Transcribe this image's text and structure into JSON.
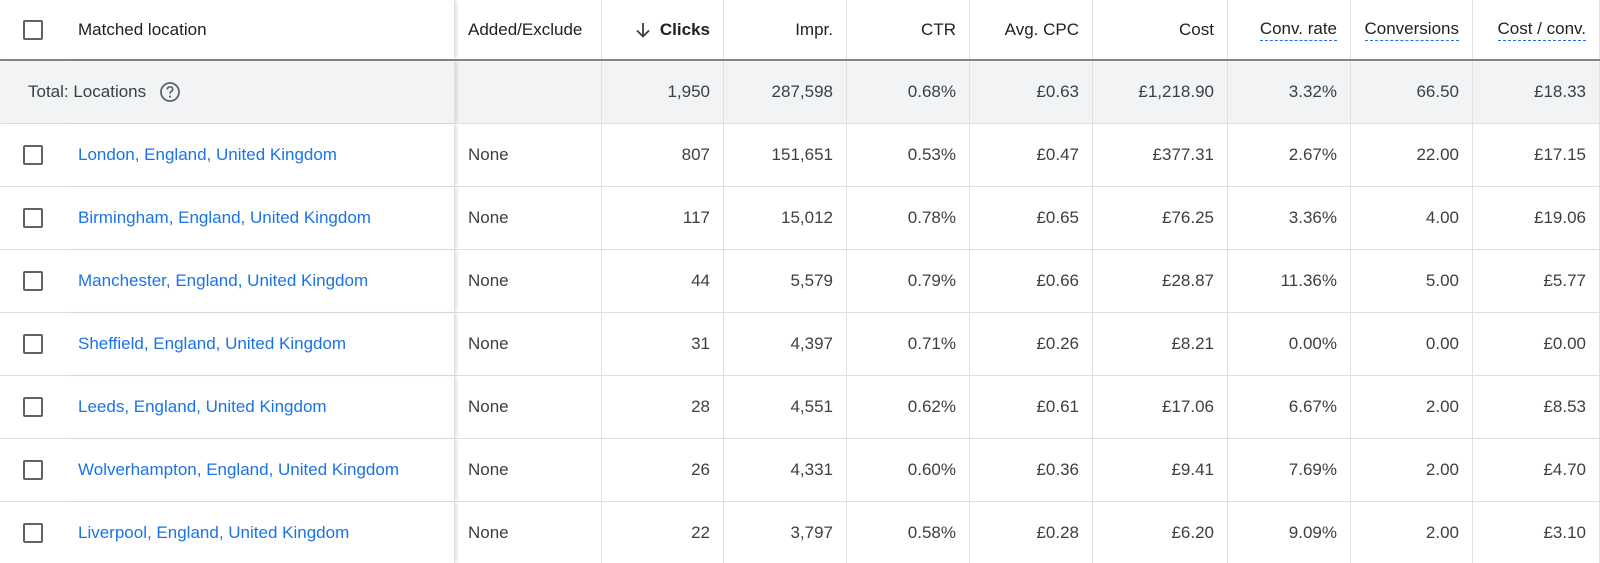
{
  "table": {
    "headers": [
      "Matched location",
      "Added/Exclude",
      "Clicks",
      "Impr.",
      "CTR",
      "Avg. CPC",
      "Cost",
      "Conv. rate",
      "Conversions",
      "Cost / conv."
    ],
    "total": {
      "label": "Total: Locations",
      "cells": [
        "1,950",
        "287,598",
        "0.68%",
        "£0.63",
        "£1,218.90",
        "3.32%",
        "66.50",
        "£18.33"
      ]
    },
    "rows": [
      [
        "London, England, United Kingdom",
        "None",
        "807",
        "151,651",
        "0.53%",
        "£0.47",
        "£377.31",
        "2.67%",
        "22.00",
        "£17.15"
      ],
      [
        "Birmingham, England, United Kingdom",
        "None",
        "117",
        "15,012",
        "0.78%",
        "£0.65",
        "£76.25",
        "3.36%",
        "4.00",
        "£19.06"
      ],
      [
        "Manchester, England, United Kingdom",
        "None",
        "44",
        "5,579",
        "0.79%",
        "£0.66",
        "£28.87",
        "11.36%",
        "5.00",
        "£5.77"
      ],
      [
        "Sheffield, England, United Kingdom",
        "None",
        "31",
        "4,397",
        "0.71%",
        "£0.26",
        "£8.21",
        "0.00%",
        "0.00",
        "£0.00"
      ],
      [
        "Leeds, England, United Kingdom",
        "None",
        "28",
        "4,551",
        "0.62%",
        "£0.61",
        "£17.06",
        "6.67%",
        "2.00",
        "£8.53"
      ],
      [
        "Wolverhampton, England, United Kingdom",
        "None",
        "26",
        "4,331",
        "0.60%",
        "£0.36",
        "£9.41",
        "7.69%",
        "2.00",
        "£4.70"
      ],
      [
        "Liverpool, England, United Kingdom",
        "None",
        "22",
        "3,797",
        "0.58%",
        "£0.28",
        "£6.20",
        "9.09%",
        "2.00",
        "£3.10"
      ]
    ]
  }
}
